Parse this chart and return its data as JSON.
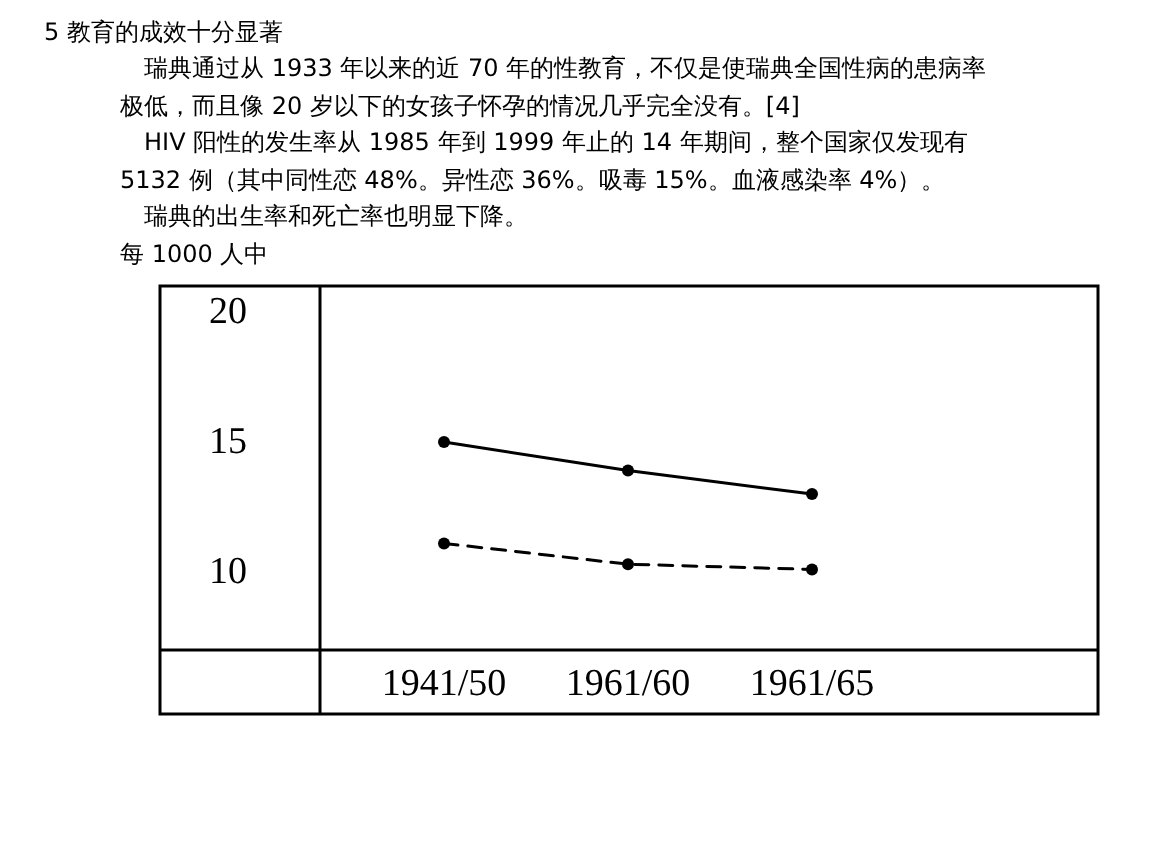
{
  "chart_data": {
    "type": "line",
    "title": "5 教育的成效十分显著",
    "annotations": [
      "瑞典通过从 1933 年以来的近 70 年的性教育，不仅是使瑞典全国性病的患病率极低，而且像 20 岁以下的女孩子怀孕的情况几乎完全没有。[4]",
      "HIV 阳性的发生率从 1985 年到 1999 年止的 14 年期间，整个国家仅发现有 5132 例（其中同性恋 48%。异性恋 36%。吸毒 15%。血液感染率 4%）。",
      "瑞典的出生率和死亡率也明显下降。"
    ],
    "ylabel": "每 1000 人中",
    "categories": [
      "1941/50",
      "1961/60",
      "1961/65"
    ],
    "ylim": [
      7,
      21
    ],
    "yticks": [
      10,
      15,
      20
    ],
    "marker": "circle",
    "grid": false,
    "series": [
      {
        "color": "#000000",
        "line_style": "solid",
        "values": [
          15,
          13.9,
          13
        ]
      },
      {
        "color": "#000000",
        "line_style": "dashed",
        "values": [
          11.1,
          10.3,
          10.1
        ]
      }
    ]
  }
}
